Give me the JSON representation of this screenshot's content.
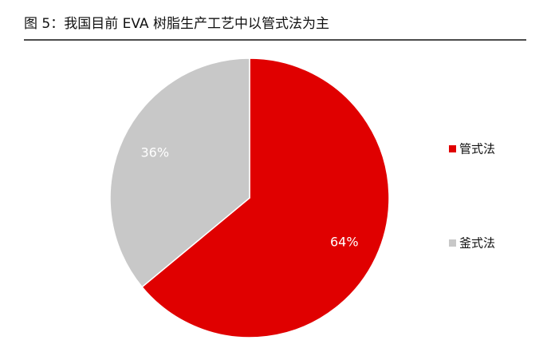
{
  "chart_data": {
    "type": "pie",
    "title": "图 5：我国目前 EVA 树脂生产工艺中以管式法为主",
    "categories": [
      "管式法",
      "釜式法"
    ],
    "values": [
      64,
      36
    ],
    "value_labels": [
      "64%",
      "36%"
    ],
    "colors": [
      "#e00000",
      "#c8c8c8"
    ],
    "legend": "right"
  }
}
